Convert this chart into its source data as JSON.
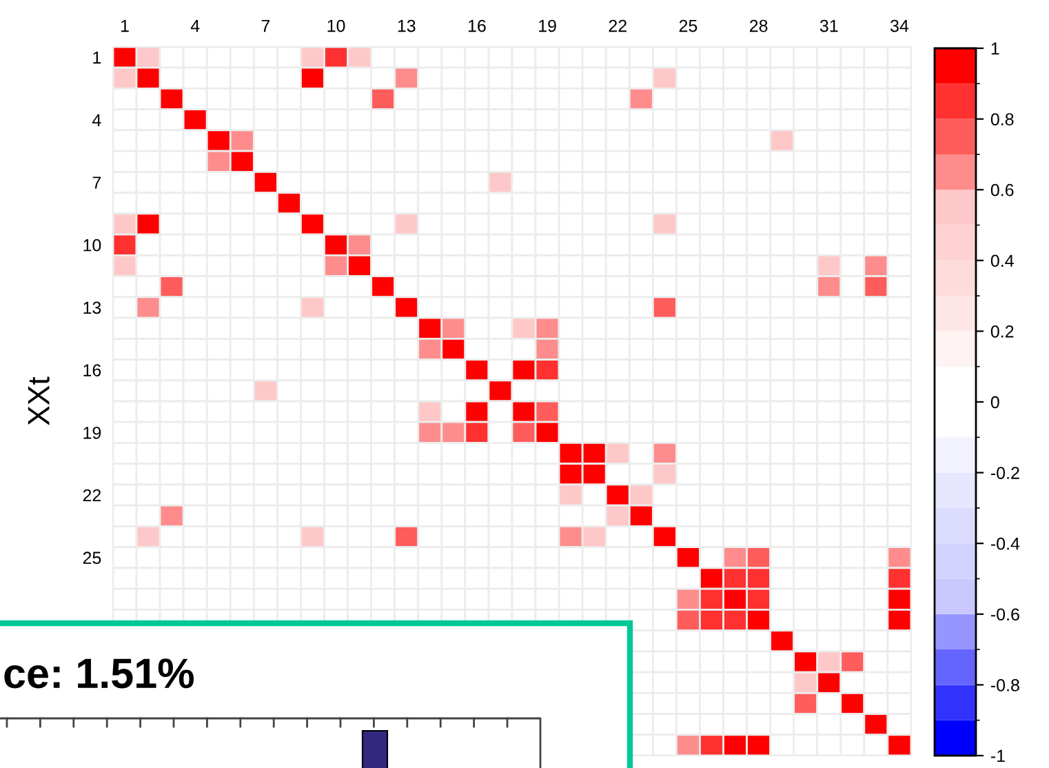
{
  "chart_data": [
    {
      "type": "heatmap",
      "ylabel": "XXt",
      "categories": [
        "1",
        null,
        null,
        "4",
        null,
        null,
        "7",
        null,
        null,
        "10",
        null,
        null,
        "13",
        null,
        null,
        "16",
        null,
        null,
        "19",
        null,
        null,
        "22",
        null,
        null,
        "25",
        null,
        null,
        "28",
        null,
        null,
        "31",
        null,
        null,
        "34"
      ],
      "y_categories": [
        "1",
        null,
        null,
        "4",
        null,
        null,
        "7",
        null,
        null,
        "10",
        null,
        null,
        "13",
        null,
        null,
        "16",
        null,
        null,
        "19",
        null,
        null,
        "22",
        null,
        null,
        "25",
        null,
        null,
        null,
        null,
        null,
        null,
        null,
        null,
        null
      ],
      "clim": [
        -1,
        1
      ],
      "cticks": [
        -1,
        -0.8,
        -0.6,
        -0.4,
        -0.2,
        0,
        0.2,
        0.4,
        0.6,
        0.8,
        1
      ],
      "cells": [
        [
          1,
          0.55,
          0,
          0,
          0,
          0,
          0,
          0,
          0.55,
          0.85,
          0.55,
          0,
          0,
          0,
          0,
          0,
          0,
          0,
          0,
          0,
          0,
          0,
          0,
          0,
          0,
          0,
          0,
          0,
          0,
          0,
          0,
          0,
          0,
          0
        ],
        [
          0.55,
          1,
          0,
          0,
          0,
          0,
          0,
          0,
          1,
          0,
          0,
          0,
          0.65,
          0,
          0,
          0,
          0,
          0,
          0,
          0,
          0,
          0,
          0,
          0.55,
          0,
          0,
          0,
          0,
          0,
          0,
          0,
          0,
          0,
          0
        ],
        [
          0,
          0,
          1,
          0,
          0,
          0,
          0,
          0,
          0,
          0,
          0,
          0.75,
          0,
          0,
          0,
          0,
          0,
          0,
          0,
          0,
          0,
          0,
          0.65,
          0,
          0,
          0,
          0,
          0,
          0,
          0,
          0,
          0,
          0,
          0
        ],
        [
          0,
          0,
          0,
          1,
          0,
          0,
          0,
          0,
          0,
          0,
          0,
          0,
          0,
          0,
          0,
          0,
          0,
          0,
          0,
          0,
          0,
          0,
          0,
          0,
          0,
          0,
          0,
          0,
          0,
          0,
          0,
          0,
          0,
          0
        ],
        [
          0,
          0,
          0,
          0,
          1,
          0.65,
          0,
          0,
          0,
          0,
          0,
          0,
          0,
          0,
          0,
          0,
          0,
          0,
          0,
          0,
          0,
          0,
          0,
          0,
          0,
          0,
          0,
          0,
          0.55,
          0,
          0,
          0,
          0,
          0
        ],
        [
          0,
          0,
          0,
          0,
          0.65,
          1,
          0,
          0,
          0,
          0,
          0,
          0,
          0,
          0,
          0,
          0,
          0,
          0,
          0,
          0,
          0,
          0,
          0,
          0,
          0,
          0,
          0,
          0,
          0,
          0,
          0,
          0,
          0,
          0
        ],
        [
          0,
          0,
          0,
          0,
          0,
          0,
          1,
          0,
          0,
          0,
          0,
          0,
          0,
          0,
          0,
          0,
          0.55,
          0,
          0,
          0,
          0,
          0,
          0,
          0,
          0,
          0,
          0,
          0,
          0,
          0,
          0,
          0,
          0,
          0
        ],
        [
          0,
          0,
          0,
          0,
          0,
          0,
          0,
          1,
          0,
          0,
          0,
          0,
          0,
          0,
          0,
          0,
          0,
          0,
          0,
          0,
          0,
          0,
          0,
          0,
          0,
          0,
          0,
          0,
          0,
          0,
          0,
          0,
          0,
          0
        ],
        [
          0.55,
          1,
          0,
          0,
          0,
          0,
          0,
          0,
          1,
          0,
          0,
          0,
          0.55,
          0,
          0,
          0,
          0,
          0,
          0,
          0,
          0,
          0,
          0,
          0.55,
          0,
          0,
          0,
          0,
          0,
          0,
          0,
          0,
          0,
          0
        ],
        [
          0.85,
          0,
          0,
          0,
          0,
          0,
          0,
          0,
          0,
          1,
          0.65,
          0,
          0,
          0,
          0,
          0,
          0,
          0,
          0,
          0,
          0,
          0,
          0,
          0,
          0,
          0,
          0,
          0,
          0,
          0,
          0,
          0,
          0,
          0
        ],
        [
          0.55,
          0,
          0,
          0,
          0,
          0,
          0,
          0,
          0,
          0.65,
          1,
          0,
          0,
          0,
          0,
          0,
          0,
          0,
          0,
          0,
          0,
          0,
          0,
          0,
          0,
          0,
          0,
          0,
          0,
          0,
          0.55,
          0,
          0.65,
          0
        ],
        [
          0,
          0,
          0.75,
          0,
          0,
          0,
          0,
          0,
          0,
          0,
          0,
          1,
          0,
          0,
          0,
          0,
          0,
          0,
          0,
          0,
          0,
          0,
          0,
          0,
          0,
          0,
          0,
          0,
          0,
          0,
          0.65,
          0,
          0.75,
          0
        ],
        [
          0,
          0.65,
          0,
          0,
          0,
          0,
          0,
          0,
          0.55,
          0,
          0,
          0,
          1,
          0,
          0,
          0,
          0,
          0,
          0,
          0,
          0,
          0,
          0,
          0.75,
          0,
          0,
          0,
          0,
          0,
          0,
          0,
          0,
          0,
          0
        ],
        [
          0,
          0,
          0,
          0,
          0,
          0,
          0,
          0,
          0,
          0,
          0,
          0,
          0,
          1,
          0.65,
          0,
          0,
          0.55,
          0.65,
          0,
          0,
          0,
          0,
          0,
          0,
          0,
          0,
          0,
          0,
          0,
          0,
          0,
          0,
          0
        ],
        [
          0,
          0,
          0,
          0,
          0,
          0,
          0,
          0,
          0,
          0,
          0,
          0,
          0,
          0.65,
          1,
          0,
          0,
          0,
          0.65,
          0,
          0,
          0,
          0,
          0,
          0,
          0,
          0,
          0,
          0,
          0,
          0,
          0,
          0,
          0
        ],
        [
          0,
          0,
          0,
          0,
          0,
          0,
          0,
          0,
          0,
          0,
          0,
          0,
          0,
          0,
          0,
          1,
          0,
          1,
          0.85,
          0,
          0,
          0,
          0,
          0,
          0,
          0,
          0,
          0,
          0,
          0,
          0,
          0,
          0,
          0
        ],
        [
          0,
          0,
          0,
          0,
          0,
          0,
          0.55,
          0,
          0,
          0,
          0,
          0,
          0,
          0,
          0,
          0,
          1,
          0,
          0,
          0,
          0,
          0,
          0,
          0,
          0,
          0,
          0,
          0,
          0,
          0,
          0,
          0,
          0,
          0
        ],
        [
          0,
          0,
          0,
          0,
          0,
          0,
          0,
          0,
          0,
          0,
          0,
          0,
          0,
          0.55,
          0,
          1,
          0,
          1,
          0.75,
          0,
          0,
          0,
          0,
          0,
          0,
          0,
          0,
          0,
          0,
          0,
          0,
          0,
          0,
          0
        ],
        [
          0,
          0,
          0,
          0,
          0,
          0,
          0,
          0,
          0,
          0,
          0,
          0,
          0,
          0.65,
          0.65,
          0.85,
          0,
          0.75,
          1,
          0,
          0,
          0,
          0,
          0,
          0,
          0,
          0,
          0,
          0,
          0,
          0,
          0,
          0,
          0
        ],
        [
          0,
          0,
          0,
          0,
          0,
          0,
          0,
          0,
          0,
          0,
          0,
          0,
          0,
          0,
          0,
          0,
          0,
          0,
          0,
          1,
          1,
          0.55,
          0,
          0.65,
          0,
          0,
          0,
          0,
          0,
          0,
          0,
          0,
          0,
          0
        ],
        [
          0,
          0,
          0,
          0,
          0,
          0,
          0,
          0,
          0,
          0,
          0,
          0,
          0,
          0,
          0,
          0,
          0,
          0,
          0,
          1,
          1,
          0,
          0,
          0.55,
          0,
          0,
          0,
          0,
          0,
          0,
          0,
          0,
          0,
          0
        ],
        [
          0,
          0,
          0,
          0,
          0,
          0,
          0,
          0,
          0,
          0,
          0,
          0,
          0,
          0,
          0,
          0,
          0,
          0,
          0,
          0.55,
          0,
          1,
          0.55,
          0,
          0,
          0,
          0,
          0,
          0,
          0,
          0,
          0,
          0,
          0
        ],
        [
          0,
          0,
          0.65,
          0,
          0,
          0,
          0,
          0,
          0,
          0,
          0,
          0,
          0,
          0,
          0,
          0,
          0,
          0,
          0,
          0,
          0,
          0.55,
          1,
          0,
          0,
          0,
          0,
          0,
          0,
          0,
          0,
          0,
          0,
          0
        ],
        [
          0,
          0.55,
          0,
          0,
          0,
          0,
          0,
          0,
          0.55,
          0,
          0,
          0,
          0.75,
          0,
          0,
          0,
          0,
          0,
          0,
          0.65,
          0.55,
          0,
          0,
          1,
          0,
          0,
          0,
          0,
          0,
          0,
          0,
          0,
          0,
          0
        ],
        [
          0,
          0,
          0,
          0,
          0,
          0,
          0,
          0,
          0,
          0,
          0,
          0,
          0,
          0,
          0,
          0,
          0,
          0,
          0,
          0,
          0,
          0,
          0,
          0,
          1,
          0,
          0.65,
          0.75,
          0,
          0,
          0,
          0,
          0,
          0.65
        ],
        [
          0,
          0,
          0,
          0,
          0,
          0,
          0,
          0,
          0,
          0,
          0,
          0,
          0,
          0,
          0,
          0,
          0,
          0,
          0,
          0,
          0,
          0,
          0,
          0,
          0,
          1,
          0.85,
          0.85,
          0,
          0,
          0,
          0,
          0,
          0.85
        ],
        [
          0,
          0,
          0,
          0,
          0,
          0,
          0,
          0,
          0,
          0,
          0,
          0,
          0,
          0,
          0,
          0,
          0,
          0,
          0,
          0,
          0,
          0,
          0,
          0,
          0.65,
          0.85,
          1,
          0.85,
          0,
          0,
          0,
          0,
          0,
          1
        ],
        [
          0,
          0,
          0,
          0,
          0,
          0,
          0,
          0,
          0,
          0,
          0,
          0,
          0,
          0,
          0,
          0,
          0,
          0,
          0,
          0,
          0,
          0,
          0,
          0,
          0.75,
          0.85,
          0.85,
          1,
          0,
          0,
          0,
          0,
          0,
          1
        ],
        [
          null,
          null,
          null,
          null,
          null,
          null,
          null,
          null,
          null,
          null,
          null,
          null,
          null,
          null,
          null,
          null,
          null,
          null,
          null,
          null,
          null,
          null,
          0,
          0,
          0,
          0,
          0,
          0,
          1,
          0,
          0,
          0,
          0,
          0
        ],
        [
          null,
          null,
          null,
          null,
          null,
          null,
          null,
          null,
          null,
          null,
          null,
          null,
          null,
          null,
          null,
          null,
          null,
          null,
          null,
          null,
          null,
          null,
          0,
          0,
          0,
          0,
          0,
          0,
          0,
          1,
          0.55,
          0.75,
          0,
          0
        ],
        [
          null,
          null,
          null,
          null,
          null,
          null,
          null,
          null,
          null,
          null,
          null,
          null,
          null,
          null,
          null,
          null,
          null,
          null,
          null,
          null,
          null,
          null,
          0,
          0,
          0,
          0,
          0,
          0,
          0,
          0.55,
          1,
          0,
          0,
          0
        ],
        [
          null,
          null,
          null,
          null,
          null,
          null,
          null,
          null,
          null,
          null,
          null,
          null,
          null,
          null,
          null,
          null,
          null,
          null,
          null,
          null,
          null,
          null,
          0,
          0,
          0,
          0,
          0,
          0,
          0,
          0.75,
          0,
          1,
          0,
          0
        ],
        [
          null,
          null,
          null,
          null,
          null,
          null,
          null,
          null,
          null,
          null,
          null,
          null,
          null,
          null,
          null,
          null,
          null,
          null,
          null,
          null,
          null,
          null,
          0,
          0,
          0,
          0,
          0,
          0,
          0,
          0,
          0,
          0,
          1,
          0
        ],
        [
          null,
          null,
          null,
          null,
          null,
          null,
          null,
          null,
          null,
          null,
          null,
          null,
          null,
          null,
          null,
          null,
          null,
          null,
          null,
          null,
          null,
          null,
          0,
          0,
          0.65,
          0.85,
          1,
          1,
          0,
          0,
          0,
          0,
          0,
          1
        ]
      ]
    },
    {
      "type": "other",
      "title": "ce: 1.51%"
    }
  ]
}
